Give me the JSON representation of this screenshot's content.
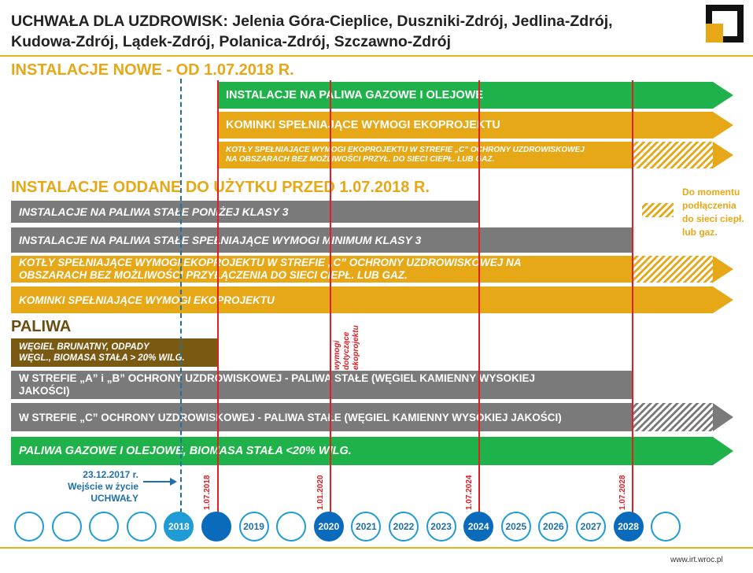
{
  "header": {
    "title_line1": "UCHWAŁA DLA UZDROWISK: Jelenia Góra-Cieplice, Duszniki-Zdrój, Jedlina-Zdrój,",
    "title_line2": "Kudowa-Zdrój, Lądek-Zdrój, Polanica-Zdrój, Szczawno-Zdrój",
    "footer_url": "www.irt.wroc.pl"
  },
  "sections": {
    "new": "INSTALACJE NOWE - OD 1.07.2018 R.",
    "old": "INSTALACJE ODDANE DO UŻYTKU PRZED 1.07.2018 R.",
    "fuels": "PALIWA"
  },
  "bars": {
    "new_gas": "INSTALACJE NA PALIWA GAZOWE I OLEJOWE",
    "new_fireplaces": "KOMINKI SPEŁNIAJĄCE WYMOGI EKOPROJEKTU",
    "new_boilers_l1": "KOTŁY SPEŁNIAJĄCE WYMOGI EKOPROJEKTU W STREFIE „C” OCHRONY UZDROWISKOWEJ",
    "new_boilers_l2": "NA OBSZARACH BEZ MOŻLIWOŚCI PRZYŁ. DO SIECI CIEPŁ. LUB GAZ.",
    "old_below3": "INSTALACJE NA PALIWA STAŁE PONIŻEJ KLASY 3",
    "old_min3": "INSTALACJE NA PALIWA STAŁE SPEŁNIAJĄCE WYMOGI MINIMUM KLASY 3",
    "old_boilers_l1": "KOTŁY SPEŁNIAJĄCE WYMOGI EKOPROJEKTU W STREFIE „C” OCHRONY UZDROWISKOWEJ NA",
    "old_boilers_l2": "OBSZARACH BEZ MOŻLIWOŚCI PRZYŁĄCZENIA DO SIECI CIEPŁ. LUB GAZ.",
    "old_fireplaces": "KOMINKI SPEŁNIAJĄCE WYMOGI EKOPROJEKTU",
    "fuel_brown_l1": "WĘGIEL BRUNATNY, ODPADY",
    "fuel_brown_l2": "WĘGL., BIOMASA STAŁA > 20% WILG.",
    "fuel_ab_l1": "W STREFIE „A” i „B” OCHRONY UZDROWISKOWEJ - PALIWA STAŁE (WĘGIEL KAMIENNY WYSOKIEJ",
    "fuel_ab_l2": "JAKOŚCI)",
    "fuel_c": "W STREFIE „C” OCHRONY UZDROWISKOWEJ - PALIWA STAŁE (WĘGIEL KAMIENNY WYSOKIEJ  JAKOŚCI)",
    "fuel_gas": "PALIWA GAZOWE I OLEJOWE, BIOMASA STAŁA <20% WILG."
  },
  "legend": {
    "l1": "Do momentu",
    "l2": "podłączenia",
    "l3": "do sieci ciepł.",
    "l4": "lub gaz."
  },
  "annotations": {
    "eco_l1": "wymogi",
    "eco_l2": "dotyczące",
    "eco_l3": "ekoprojektu",
    "entry_date": "23.12.2017 r.",
    "entry_l2": "Wejście w życie",
    "entry_l3": "UCHWAŁY",
    "d2018": "1.07.2018",
    "d2020": "1.01.2020",
    "d2024": "1.07.2024",
    "d2028": "1.07.2028"
  },
  "timeline": [
    "",
    "",
    "",
    "",
    "2018",
    "",
    "2019",
    "",
    "2020",
    "2021",
    "2022",
    "2023",
    "2024",
    "2025",
    "2026",
    "2027",
    "2028",
    ""
  ],
  "colors": {
    "green": "#1fb14a",
    "yellow": "#e6a817",
    "gray": "#7a7a7a",
    "brown": "#7a5a12",
    "red": "#e01e24",
    "blue": "#1f9bd6"
  }
}
